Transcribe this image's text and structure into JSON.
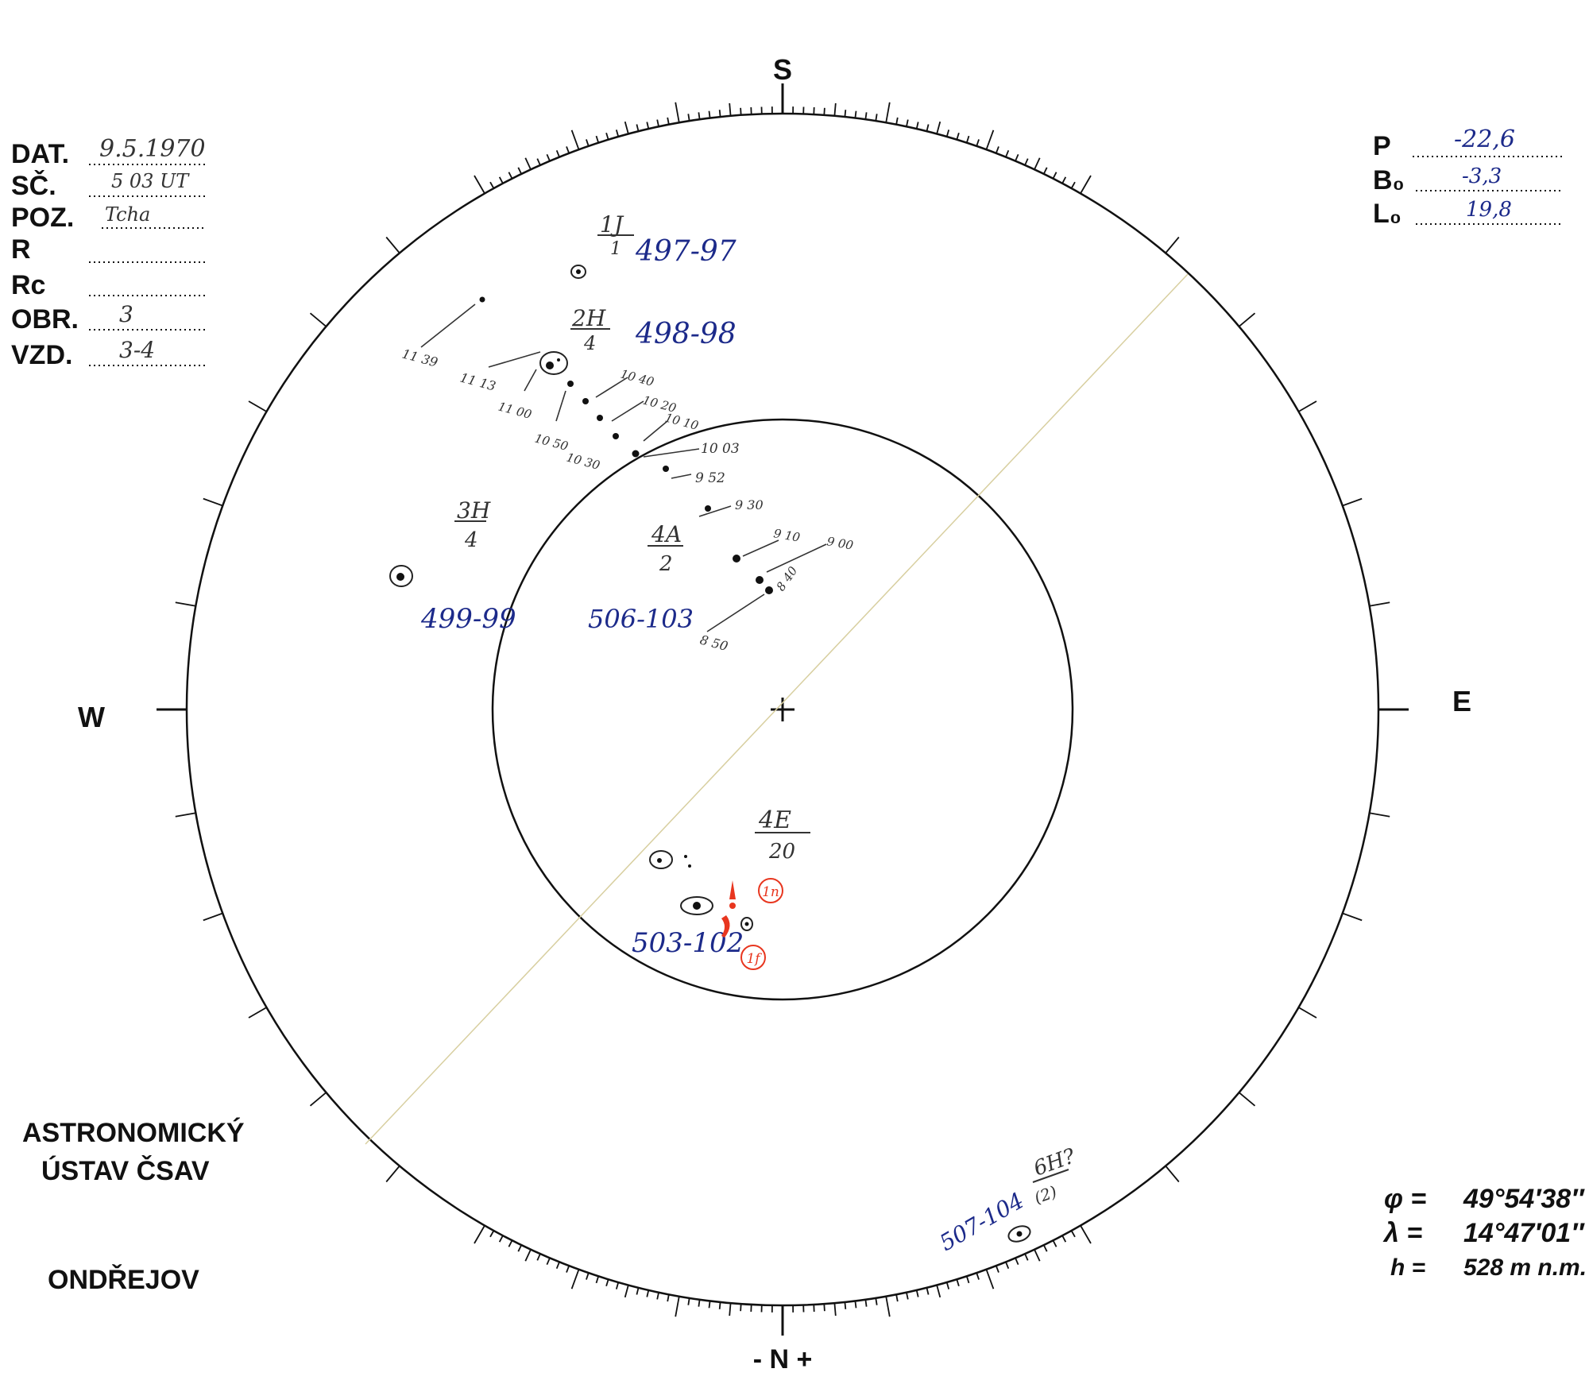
{
  "header_fields": [
    {
      "key": "date",
      "label": "DAT.",
      "value": "9.5.1970"
    },
    {
      "key": "time",
      "label": "SČ.",
      "value": "5 03 UT"
    },
    {
      "key": "observer",
      "label": "POZ.",
      "value": "Tcha"
    },
    {
      "key": "r",
      "label": "R",
      "value": ""
    },
    {
      "key": "rc",
      "label": "Rc",
      "value": ""
    },
    {
      "key": "image_quality",
      "label": "OBR.",
      "value": "3"
    },
    {
      "key": "seeing",
      "label": "VZD.",
      "value": "3-4"
    }
  ],
  "solar_params": [
    {
      "key": "p",
      "label": "P",
      "value": "-22,6"
    },
    {
      "key": "b0",
      "label": "B₀",
      "value": "-3,3"
    },
    {
      "key": "l0",
      "label": "L₀",
      "value": "19,8"
    }
  ],
  "compass": {
    "south": "S",
    "west": "W",
    "east": "E",
    "north": "- N +"
  },
  "institute": {
    "line1": "ASTRONOMICKÝ",
    "line2": "ÚSTAV ČSAV",
    "place": "ONDŘEJOV"
  },
  "site": {
    "phi_sym": "φ =",
    "phi": "49°54′38″",
    "lambda_sym": "λ =",
    "lambda": "14°47′01″",
    "h_sym": "h =",
    "h": "528 m n.m."
  },
  "groups": [
    {
      "key": "g1",
      "class_top": "1J",
      "class_bottom": "1",
      "number": "497-97"
    },
    {
      "key": "g2",
      "class_top": "2H",
      "class_bottom": "4",
      "number": "498-98"
    },
    {
      "key": "g3",
      "class_top": "3H",
      "class_bottom": "4",
      "number": "499-99"
    },
    {
      "key": "g4",
      "class_top": "4E",
      "class_bottom": "20",
      "number": "503-102"
    },
    {
      "key": "g5",
      "class_top": "4A",
      "class_bottom": "2",
      "number": "506-103"
    },
    {
      "key": "g6",
      "class_top": "6H?",
      "class_bottom": "(2)",
      "number": "507-104"
    }
  ],
  "track_times": [
    "11 39",
    "11 13",
    "11 00",
    "10 40",
    "10 50",
    "10 30",
    "10 20",
    "10 10",
    "10 03",
    "9 52",
    "9 30",
    "9 10",
    "9 00",
    "8 50",
    "8 40"
  ],
  "flares": [
    "1n",
    "1f"
  ],
  "colors": {
    "ink": "#111111",
    "blue_ink": "#1c2a8a",
    "pencil": "#333333",
    "red": "#e8361f",
    "axis_line": "#d8cfa0"
  }
}
